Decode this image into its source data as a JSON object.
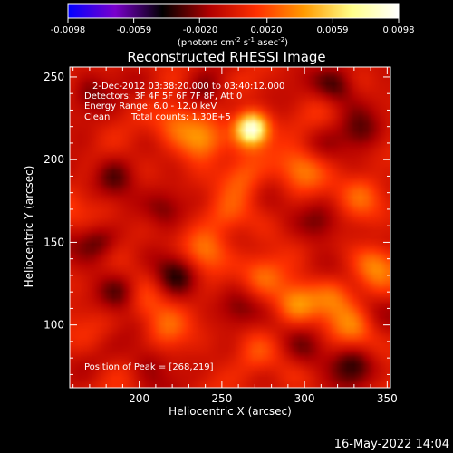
{
  "colorbar": {
    "tick_labels": [
      "-0.0098",
      "-0.0059",
      "-0.0020",
      "0.0020",
      "0.0059",
      "0.0098"
    ],
    "tick_values": [
      -0.0098,
      -0.0059,
      -0.002,
      0.002,
      0.0059,
      0.0098
    ],
    "range": [
      -0.0098,
      0.0098
    ],
    "unit_prefix": "(photons cm",
    "unit_sup1": "-2",
    "unit_mid1": " s",
    "unit_sup2": "-1",
    "unit_mid2": " asec",
    "unit_sup3": "-2",
    "unit_suffix": ")",
    "stops": [
      "#0000ff",
      "#7a00cc",
      "#000000",
      "#b10000",
      "#ff3000",
      "#ff9a00",
      "#ffff88",
      "#ffffff"
    ]
  },
  "chart_data": {
    "type": "heatmap",
    "title": "Reconstructed RHESSI Image",
    "xlabel": "Heliocentric X (arcsec)",
    "ylabel": "Heliocentric Y (arcsec)",
    "xlim": [
      158,
      352
    ],
    "ylim": [
      62,
      256
    ],
    "x_ticks": [
      200,
      250,
      300,
      350
    ],
    "y_ticks": [
      100,
      150,
      200,
      250
    ],
    "x_tick_labels": [
      "200",
      "250",
      "300",
      "350"
    ],
    "y_tick_labels": [
      "100",
      "150",
      "200",
      "250"
    ],
    "peak": {
      "x": 268,
      "y": 219,
      "value": 0.0098
    },
    "sources": [
      {
        "x": 268,
        "y": 219,
        "amp": 0.0098
      },
      {
        "x": 238,
        "y": 212,
        "amp": 0.0042
      },
      {
        "x": 222,
        "y": 222,
        "amp": 0.003
      },
      {
        "x": 298,
        "y": 195,
        "amp": 0.0032
      },
      {
        "x": 262,
        "y": 190,
        "amp": 0.003
      },
      {
        "x": 335,
        "y": 180,
        "amp": 0.0028
      },
      {
        "x": 342,
        "y": 138,
        "amp": 0.003
      },
      {
        "x": 240,
        "y": 145,
        "amp": 0.0032
      },
      {
        "x": 275,
        "y": 130,
        "amp": 0.0026
      },
      {
        "x": 295,
        "y": 112,
        "amp": 0.0038
      },
      {
        "x": 318,
        "y": 118,
        "amp": 0.003
      },
      {
        "x": 215,
        "y": 98,
        "amp": 0.0026
      },
      {
        "x": 200,
        "y": 112,
        "amp": 0.0022
      },
      {
        "x": 270,
        "y": 80,
        "amp": 0.002
      },
      {
        "x": 180,
        "y": 165,
        "amp": 0.0018
      },
      {
        "x": 252,
        "y": 165,
        "amp": 0.002
      },
      {
        "x": 330,
        "y": 98,
        "amp": 0.0024
      },
      {
        "x": 185,
        "y": 190,
        "amp": -0.003
      },
      {
        "x": 176,
        "y": 150,
        "amp": -0.0034
      },
      {
        "x": 215,
        "y": 170,
        "amp": -0.0026
      },
      {
        "x": 222,
        "y": 130,
        "amp": -0.0028
      },
      {
        "x": 190,
        "y": 118,
        "amp": -0.003
      },
      {
        "x": 205,
        "y": 78,
        "amp": -0.0024
      },
      {
        "x": 320,
        "y": 245,
        "amp": -0.0034
      },
      {
        "x": 335,
        "y": 215,
        "amp": -0.003
      },
      {
        "x": 310,
        "y": 160,
        "amp": -0.0024
      },
      {
        "x": 330,
        "y": 75,
        "amp": -0.0028
      },
      {
        "x": 300,
        "y": 82,
        "amp": -0.002
      },
      {
        "x": 260,
        "y": 108,
        "amp": -0.0022
      },
      {
        "x": 168,
        "y": 240,
        "amp": -0.0024
      },
      {
        "x": 238,
        "y": 240,
        "amp": -0.002
      }
    ]
  },
  "annotations": {
    "time_range": "2-Dec-2012 03:38:20.000 to 03:40:12.000",
    "detectors": "Detectors: 3F 4F 5F 6F 7F 8F, Att 0",
    "energy": "Energy Range: 6.0 - 12.0 keV",
    "clean_label": "Clean",
    "total_counts": "Total counts: 1.30E+5",
    "peak_position": "Position of Peak = [268,219]"
  },
  "footer": {
    "timestamp": "16-May-2022 14:04"
  }
}
